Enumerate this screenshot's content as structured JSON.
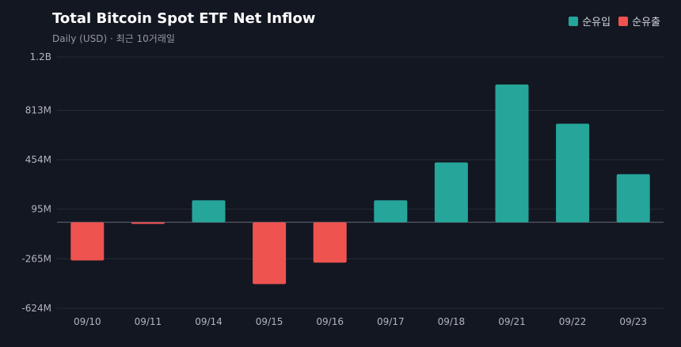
{
  "header": {
    "title": "Total Bitcoin Spot ETF Net Inflow",
    "subtitle": "Daily (USD) · 최근 10거래일"
  },
  "legend": [
    {
      "label": "순유입",
      "color": "#26a69a"
    },
    {
      "label": "순유출",
      "color": "#ef5350"
    }
  ],
  "chart_data": {
    "type": "bar",
    "title": "Total Bitcoin Spot ETF Net Inflow",
    "subtitle": "Daily (USD) · 최근 10거래일",
    "categories": [
      "09/10",
      "09/11",
      "09/14",
      "09/15",
      "09/16",
      "09/17",
      "09/18",
      "09/21",
      "09/22",
      "09/23"
    ],
    "values": [
      -277,
      -12,
      160,
      -448,
      -293,
      160,
      434,
      1000,
      715,
      349
    ],
    "unit": "M USD",
    "yticks": [
      1200,
      813,
      454,
      95,
      -265,
      -624
    ],
    "ytick_labels": [
      "1.2B",
      "813M",
      "454M",
      "95M",
      "-265M",
      "-624M"
    ],
    "ylim": [
      -624,
      1200
    ],
    "positive_color": "#26a69a",
    "negative_color": "#ef5350",
    "grid": true,
    "legend_position": "top-right",
    "xlabel": "",
    "ylabel": ""
  }
}
